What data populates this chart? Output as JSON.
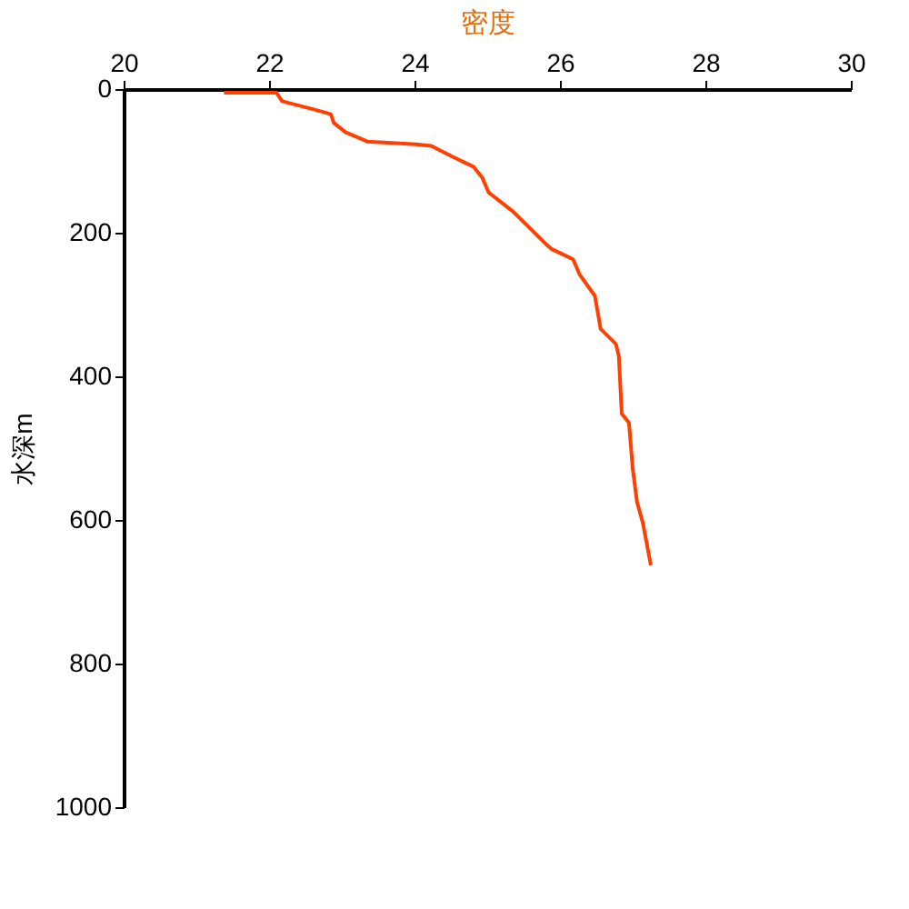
{
  "chart_data": {
    "type": "line",
    "xlabel": "密度",
    "ylabel": "水深m",
    "xlim": [
      20,
      30
    ],
    "xticks": [
      20,
      22,
      24,
      26,
      28,
      30
    ],
    "ylim": [
      1000,
      0
    ],
    "yticks": [
      0,
      200,
      400,
      600,
      800,
      1000
    ],
    "grid": false,
    "marker": "none",
    "series": [
      {
        "color": "#ff4000",
        "x": [
          21.38,
          22.1,
          22.18,
          22.64,
          22.85,
          22.89,
          23.05,
          23.35,
          24.02,
          24.23,
          24.52,
          24.81,
          24.93,
          25.02,
          25.35,
          25.68,
          25.81,
          25.89,
          26.1,
          26.18,
          26.27,
          26.48,
          26.56,
          26.77,
          26.81,
          26.85,
          26.95,
          27.0,
          27.06,
          27.14,
          27.25
        ],
        "values": [
          5,
          5,
          17,
          29,
          35,
          47,
          60,
          73,
          77,
          79,
          94,
          108,
          123,
          144,
          170,
          203,
          216,
          223,
          233,
          237,
          258,
          288,
          334,
          355,
          372,
          452,
          465,
          528,
          575,
          604,
          663
        ]
      }
    ]
  }
}
